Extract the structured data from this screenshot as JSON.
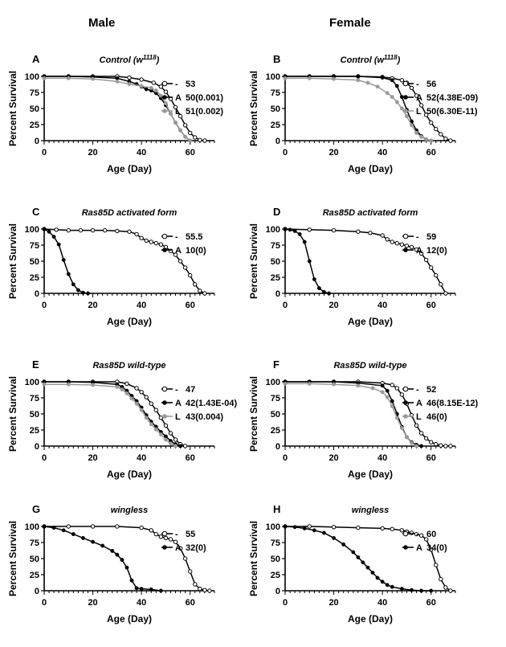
{
  "column_titles": [
    "Male",
    "Female"
  ],
  "chart_data": [
    {
      "id": "A",
      "letter": "A",
      "type": "line",
      "title": "Control (w",
      "title_sup": "1118",
      "title_close": ")",
      "ylabel": "Percent Survival",
      "xlabel": "Age (Day)",
      "xlim": [
        0,
        70
      ],
      "ylim": [
        0,
        100
      ],
      "xticks": [
        0,
        20,
        40,
        60
      ],
      "yticks": [
        0,
        25,
        50,
        75,
        100
      ],
      "series": [
        {
          "name": "-",
          "label": "53",
          "marker": "open",
          "color": "#000000",
          "x": [
            0,
            10,
            20,
            30,
            35,
            40,
            45,
            48,
            50,
            52,
            54,
            56,
            58,
            60,
            62,
            64,
            66
          ],
          "y": [
            100,
            100,
            100,
            100,
            98,
            95,
            90,
            84,
            76,
            65,
            52,
            38,
            24,
            12,
            5,
            1,
            0
          ]
        },
        {
          "name": "A",
          "label": "50(0.001)",
          "marker": "filled",
          "color": "#000000",
          "x": [
            0,
            10,
            20,
            30,
            35,
            38,
            40,
            42,
            44,
            46,
            48,
            50,
            52,
            54,
            56,
            58,
            60
          ],
          "y": [
            100,
            100,
            99,
            97,
            92,
            88,
            84,
            80,
            78,
            74,
            66,
            55,
            42,
            28,
            16,
            6,
            0
          ]
        },
        {
          "name": "L",
          "label": "51(0.002)",
          "marker": "filled",
          "color": "#9a9a9a",
          "x": [
            0,
            10,
            20,
            30,
            35,
            40,
            44,
            46,
            48,
            50,
            52,
            54,
            56,
            58,
            60
          ],
          "y": [
            97,
            97,
            96,
            92,
            88,
            85,
            82,
            78,
            70,
            58,
            42,
            28,
            16,
            6,
            0
          ]
        }
      ]
    },
    {
      "id": "B",
      "letter": "B",
      "type": "line",
      "title": "Control (w",
      "title_sup": "1118",
      "title_close": ")",
      "ylabel": "Percent Survival",
      "xlabel": "Age (Day)",
      "xlim": [
        0,
        70
      ],
      "ylim": [
        0,
        100
      ],
      "xticks": [
        0,
        20,
        40,
        60
      ],
      "yticks": [
        0,
        25,
        50,
        75,
        100
      ],
      "series": [
        {
          "name": "-",
          "label": "56",
          "marker": "open",
          "color": "#000000",
          "x": [
            0,
            10,
            20,
            30,
            40,
            44,
            48,
            50,
            52,
            54,
            56,
            58,
            60,
            62,
            64,
            66,
            68
          ],
          "y": [
            100,
            100,
            100,
            100,
            99,
            97,
            94,
            90,
            82,
            70,
            55,
            40,
            28,
            18,
            10,
            3,
            0
          ]
        },
        {
          "name": "A",
          "label": "52(4.38E-09)",
          "marker": "filled",
          "color": "#000000",
          "x": [
            0,
            10,
            20,
            30,
            40,
            44,
            46,
            48,
            50,
            52,
            54,
            56,
            58,
            60
          ],
          "y": [
            100,
            100,
            100,
            100,
            98,
            94,
            85,
            68,
            48,
            30,
            16,
            7,
            2,
            0
          ]
        },
        {
          "name": "L",
          "label": "50(6.30E-11)",
          "marker": "filled",
          "color": "#9a9a9a",
          "x": [
            0,
            10,
            20,
            30,
            34,
            38,
            42,
            44,
            46,
            48,
            50,
            52,
            54,
            56,
            58,
            60
          ],
          "y": [
            97,
            97,
            96,
            94,
            90,
            84,
            74,
            68,
            60,
            50,
            38,
            24,
            12,
            6,
            2,
            0
          ]
        }
      ]
    },
    {
      "id": "C",
      "letter": "C",
      "type": "line",
      "title": "Ras85D activated form",
      "ylabel": "Percent Survival",
      "xlabel": "Age (Day)",
      "xlim": [
        0,
        70
      ],
      "ylim": [
        0,
        100
      ],
      "xticks": [
        0,
        20,
        40,
        60
      ],
      "yticks": [
        0,
        25,
        50,
        75,
        100
      ],
      "series": [
        {
          "name": "-",
          "label": "55.5",
          "marker": "open",
          "color": "#000000",
          "x": [
            0,
            5,
            10,
            15,
            20,
            25,
            30,
            35,
            38,
            40,
            42,
            44,
            46,
            48,
            50,
            52,
            54,
            56,
            58,
            60,
            62,
            64,
            66
          ],
          "y": [
            100,
            99,
            98,
            98,
            98,
            98,
            97,
            96,
            92,
            86,
            82,
            80,
            78,
            76,
            72,
            66,
            60,
            50,
            40,
            28,
            14,
            4,
            0
          ]
        },
        {
          "name": "A",
          "label": "10(0)",
          "marker": "filled",
          "color": "#000000",
          "x": [
            0,
            2,
            4,
            6,
            8,
            10,
            12,
            14,
            16,
            18
          ],
          "y": [
            100,
            96,
            88,
            76,
            52,
            30,
            14,
            5,
            1,
            0
          ]
        }
      ]
    },
    {
      "id": "D",
      "letter": "D",
      "type": "line",
      "title": "Ras85D activated form",
      "ylabel": "Percent Survival",
      "xlabel": "Age (Day)",
      "xlim": [
        0,
        70
      ],
      "ylim": [
        0,
        100
      ],
      "xticks": [
        0,
        20,
        40,
        60
      ],
      "yticks": [
        0,
        25,
        50,
        75,
        100
      ],
      "series": [
        {
          "name": "-",
          "label": "59",
          "marker": "open",
          "color": "#000000",
          "x": [
            0,
            10,
            20,
            30,
            35,
            40,
            42,
            44,
            46,
            48,
            50,
            52,
            54,
            56,
            58,
            60,
            62,
            64,
            66
          ],
          "y": [
            100,
            99,
            98,
            96,
            94,
            90,
            84,
            80,
            78,
            76,
            74,
            72,
            68,
            62,
            52,
            40,
            28,
            14,
            0
          ]
        },
        {
          "name": "A",
          "label": "12(0)",
          "marker": "filled",
          "color": "#000000",
          "x": [
            0,
            2,
            4,
            6,
            8,
            10,
            12,
            14,
            16,
            18
          ],
          "y": [
            100,
            99,
            97,
            92,
            80,
            50,
            22,
            8,
            2,
            0
          ]
        }
      ]
    },
    {
      "id": "E",
      "letter": "E",
      "type": "line",
      "title": "Ras85D wild-type",
      "ylabel": "Percent Survival",
      "xlabel": "Age (Day)",
      "xlim": [
        0,
        70
      ],
      "ylim": [
        0,
        100
      ],
      "xticks": [
        0,
        20,
        40,
        60
      ],
      "yticks": [
        0,
        25,
        50,
        75,
        100
      ],
      "series": [
        {
          "name": "-",
          "label": "47",
          "marker": "open",
          "color": "#000000",
          "x": [
            0,
            10,
            20,
            30,
            34,
            38,
            40,
            42,
            44,
            46,
            48,
            50,
            52,
            54,
            56,
            58
          ],
          "y": [
            100,
            100,
            100,
            100,
            97,
            90,
            84,
            76,
            66,
            56,
            44,
            32,
            20,
            10,
            3,
            0
          ]
        },
        {
          "name": "A",
          "label": "42(1.43E-04)",
          "marker": "filled",
          "color": "#000000",
          "x": [
            0,
            10,
            20,
            30,
            32,
            34,
            36,
            38,
            40,
            42,
            44,
            46,
            48,
            50,
            52,
            54,
            56
          ],
          "y": [
            100,
            100,
            99,
            96,
            92,
            86,
            78,
            70,
            60,
            48,
            38,
            30,
            22,
            15,
            8,
            3,
            0
          ]
        },
        {
          "name": "L",
          "label": "43(0.004)",
          "marker": "filled",
          "color": "#9a9a9a",
          "x": [
            0,
            10,
            20,
            30,
            32,
            34,
            36,
            38,
            40,
            42,
            44,
            46,
            48,
            50,
            52,
            54
          ],
          "y": [
            96,
            96,
            95,
            92,
            88,
            82,
            74,
            66,
            56,
            44,
            34,
            26,
            18,
            10,
            4,
            0
          ]
        }
      ]
    },
    {
      "id": "F",
      "letter": "F",
      "type": "line",
      "title": "Ras85D wild-type",
      "ylabel": "Percent Survival",
      "xlabel": "Age (Day)",
      "xlim": [
        0,
        70
      ],
      "ylim": [
        0,
        100
      ],
      "xticks": [
        0,
        20,
        40,
        60
      ],
      "yticks": [
        0,
        25,
        50,
        75,
        100
      ],
      "series": [
        {
          "name": "-",
          "label": "52",
          "marker": "open",
          "color": "#000000",
          "x": [
            0,
            10,
            20,
            30,
            40,
            44,
            46,
            48,
            50,
            52,
            54,
            56,
            58,
            60,
            62,
            64,
            66,
            68
          ],
          "y": [
            100,
            100,
            100,
            100,
            98,
            95,
            90,
            80,
            66,
            48,
            32,
            20,
            12,
            6,
            3,
            1,
            0,
            0
          ]
        },
        {
          "name": "A",
          "label": "46(8.15E-12)",
          "marker": "filled",
          "color": "#000000",
          "x": [
            0,
            10,
            20,
            30,
            40,
            42,
            44,
            46,
            48,
            50,
            52,
            54,
            56
          ],
          "y": [
            100,
            100,
            100,
            98,
            94,
            86,
            70,
            50,
            30,
            14,
            6,
            2,
            0
          ]
        },
        {
          "name": "L",
          "label": "46(0)",
          "marker": "filled",
          "color": "#9a9a9a",
          "x": [
            0,
            10,
            20,
            30,
            36,
            40,
            42,
            44,
            46,
            48,
            50,
            52,
            54
          ],
          "y": [
            97,
            97,
            96,
            94,
            90,
            84,
            76,
            62,
            44,
            28,
            14,
            5,
            0
          ]
        }
      ]
    },
    {
      "id": "G",
      "letter": "G",
      "type": "line",
      "title": "wingless",
      "ylabel": "Percent Survival",
      "xlabel": "Age (Day)",
      "xlim": [
        0,
        70
      ],
      "ylim": [
        0,
        100
      ],
      "xticks": [
        0,
        20,
        40,
        60
      ],
      "yticks": [
        0,
        25,
        50,
        75,
        100
      ],
      "series": [
        {
          "name": "-",
          "label": "55",
          "marker": "open",
          "color": "#000000",
          "x": [
            0,
            10,
            20,
            30,
            40,
            44,
            46,
            48,
            50,
            52,
            54,
            56,
            58,
            60,
            62,
            64,
            66,
            68
          ],
          "y": [
            100,
            100,
            100,
            100,
            98,
            94,
            88,
            84,
            82,
            80,
            76,
            66,
            50,
            30,
            10,
            3,
            1,
            0
          ]
        },
        {
          "name": "A",
          "label": "32(0)",
          "marker": "filled",
          "color": "#000000",
          "x": [
            0,
            4,
            8,
            12,
            16,
            20,
            24,
            28,
            30,
            32,
            34,
            36,
            38,
            40,
            44,
            48
          ],
          "y": [
            100,
            98,
            94,
            88,
            82,
            76,
            70,
            62,
            56,
            48,
            36,
            16,
            4,
            3,
            2,
            0
          ]
        }
      ]
    },
    {
      "id": "H",
      "letter": "H",
      "type": "line",
      "title": "wingless",
      "ylabel": "Percent Survival",
      "xlabel": "Age (Day)",
      "xlim": [
        0,
        70
      ],
      "ylim": [
        0,
        100
      ],
      "xticks": [
        0,
        20,
        40,
        60
      ],
      "yticks": [
        0,
        25,
        50,
        75,
        100
      ],
      "series": [
        {
          "name": "-",
          "label": "60",
          "marker": "open",
          "color": "#000000",
          "x": [
            0,
            10,
            20,
            30,
            40,
            44,
            48,
            50,
            52,
            54,
            56,
            58,
            60,
            62,
            64,
            66,
            68
          ],
          "y": [
            100,
            100,
            99,
            98,
            97,
            96,
            94,
            92,
            90,
            88,
            86,
            80,
            64,
            40,
            18,
            5,
            0
          ]
        },
        {
          "name": "A",
          "label": "34(0)",
          "marker": "filled",
          "color": "#000000",
          "x": [
            0,
            4,
            8,
            12,
            16,
            20,
            24,
            28,
            30,
            32,
            34,
            36,
            38,
            40,
            42,
            44,
            48,
            52,
            56,
            60
          ],
          "y": [
            100,
            99,
            97,
            94,
            90,
            82,
            72,
            60,
            52,
            44,
            36,
            28,
            20,
            14,
            9,
            6,
            3,
            1,
            0,
            0
          ]
        }
      ]
    }
  ]
}
